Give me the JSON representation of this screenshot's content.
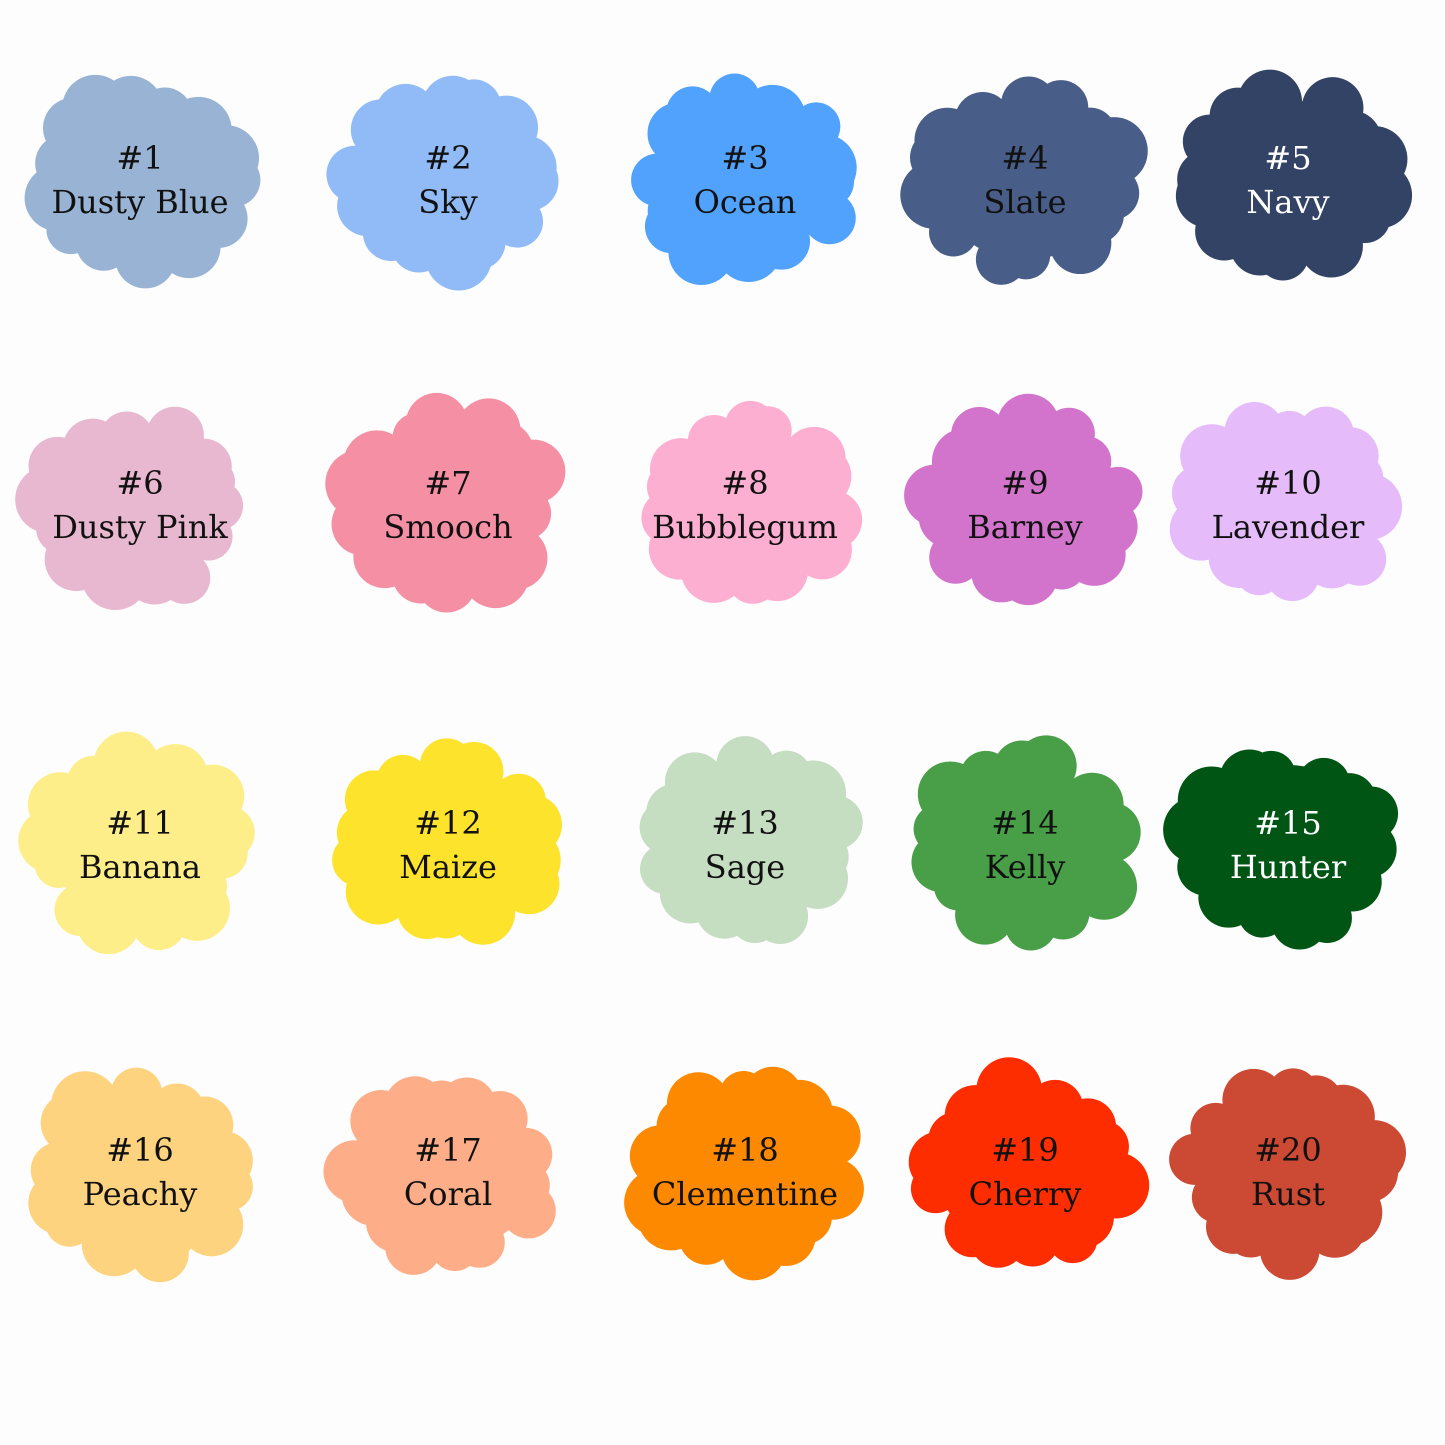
{
  "swatches": [
    {
      "number": "#1",
      "name": "Dusty Blue",
      "color": "#98b3d3",
      "text_color": "#111111"
    },
    {
      "number": "#2",
      "name": "Sky",
      "color": "#90bbf6",
      "text_color": "#111111"
    },
    {
      "number": "#3",
      "name": "Ocean",
      "color": "#51a2fc",
      "text_color": "#111111"
    },
    {
      "number": "#4",
      "name": "Slate",
      "color": "#485e88",
      "text_color": "#111111"
    },
    {
      "number": "#5",
      "name": "Navy",
      "color": "#334366",
      "text_color": "#ffffff"
    },
    {
      "number": "#6",
      "name": "Dusty Pink",
      "color": "#e8b8d0",
      "text_color": "#111111"
    },
    {
      "number": "#7",
      "name": "Smooch",
      "color": "#f48fa4",
      "text_color": "#111111"
    },
    {
      "number": "#8",
      "name": "Bubblegum",
      "color": "#fdafd1",
      "text_color": "#111111"
    },
    {
      "number": "#9",
      "name": "Barney",
      "color": "#d273cc",
      "text_color": "#111111"
    },
    {
      "number": "#10",
      "name": "Lavender",
      "color": "#e5bbfa",
      "text_color": "#111111"
    },
    {
      "number": "#11",
      "name": "Banana",
      "color": "#fdee8a",
      "text_color": "#111111"
    },
    {
      "number": "#12",
      "name": "Maize",
      "color": "#fde32b",
      "text_color": "#111111"
    },
    {
      "number": "#13",
      "name": "Sage",
      "color": "#c5ddc1",
      "text_color": "#111111"
    },
    {
      "number": "#14",
      "name": "Kelly",
      "color": "#499f48",
      "text_color": "#111111"
    },
    {
      "number": "#15",
      "name": "Hunter",
      "color": "#005515",
      "text_color": "#ffffff"
    },
    {
      "number": "#16",
      "name": "Peachy",
      "color": "#fdd37f",
      "text_color": "#111111"
    },
    {
      "number": "#17",
      "name": "Coral",
      "color": "#fdae88",
      "text_color": "#111111"
    },
    {
      "number": "#18",
      "name": "Clementine",
      "color": "#fd8900",
      "text_color": "#111111"
    },
    {
      "number": "#19",
      "name": "Cherry",
      "color": "#fd2d00",
      "text_color": "#111111"
    },
    {
      "number": "#20",
      "name": "Rust",
      "color": "#cc4933",
      "text_color": "#111111"
    }
  ]
}
